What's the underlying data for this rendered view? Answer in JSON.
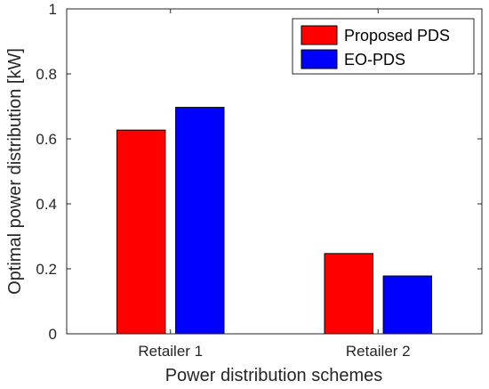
{
  "chart_data": {
    "type": "bar",
    "categories": [
      "Retailer 1",
      "Retailer 2"
    ],
    "series": [
      {
        "name": "Proposed PDS",
        "color": "#ff0000",
        "values": [
          0.627,
          0.247
        ]
      },
      {
        "name": "EO-PDS",
        "color": "#0000ff",
        "values": [
          0.697,
          0.178
        ]
      }
    ],
    "xlabel": "Power distribution schemes",
    "ylabel": "Optimal power distribution [kW]",
    "ylim": [
      0,
      1
    ],
    "yticks": [
      "0",
      "0.2",
      "0.4",
      "0.6",
      "0.8",
      "1"
    ],
    "grid": false,
    "legend_position": "top-right"
  }
}
